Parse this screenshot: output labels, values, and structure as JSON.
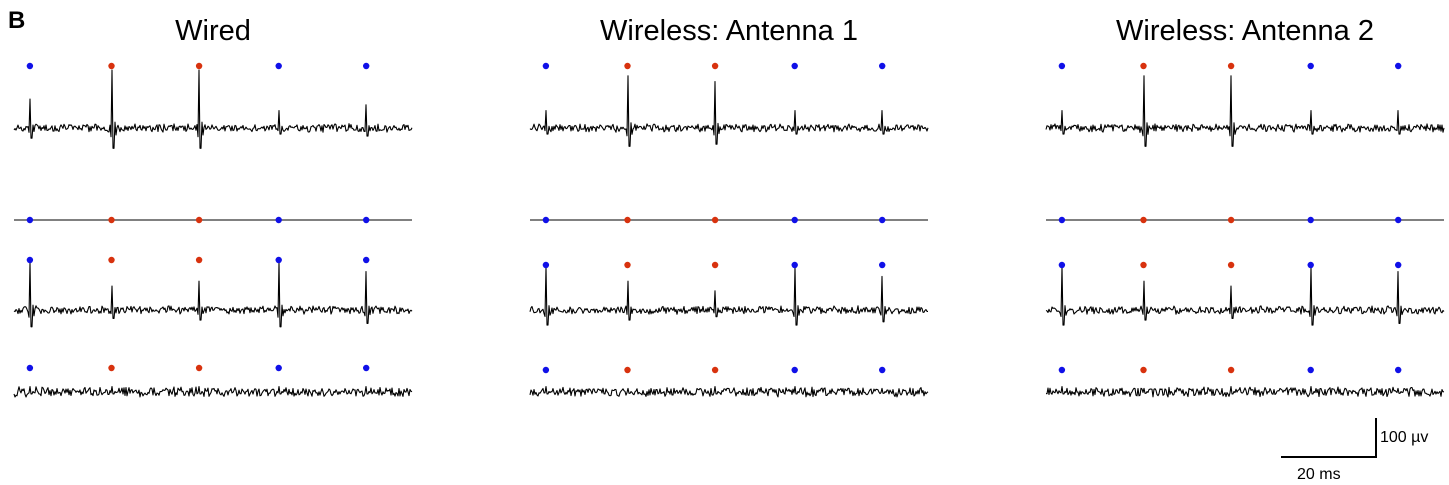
{
  "panel_label": "B",
  "scalebar": {
    "voltage_label": "100 µv",
    "time_label": "20 ms"
  },
  "colors": {
    "unit_blue": "#1010e8",
    "unit_red": "#d8320e",
    "trace": "#000000"
  },
  "chart_data": [
    {
      "type": "line",
      "title": "Wired",
      "xlabel": "",
      "ylabel": "",
      "spike_times_ms": {
        "blue": [
          8,
          133,
          177
        ],
        "red": [
          49,
          93
        ]
      },
      "traces": [
        {
          "name": "",
          "kind": "noisy",
          "peaks": [
            {
              "t": 8,
              "a": 0.5,
              "c": "blue"
            },
            {
              "t": 49,
              "a": 1.0,
              "c": "red"
            },
            {
              "t": 93,
              "a": 1.0,
              "c": "red"
            },
            {
              "t": 133,
              "a": 0.3,
              "c": "blue"
            },
            {
              "t": 177,
              "a": 0.4,
              "c": "blue"
            }
          ]
        },
        {
          "name": "",
          "kind": "flat"
        },
        {
          "name": "",
          "kind": "noisy",
          "peaks": [
            {
              "t": 8,
              "a": 1.0,
              "c": "blue"
            },
            {
              "t": 49,
              "a": 0.5,
              "c": "red"
            },
            {
              "t": 93,
              "a": 0.6,
              "c": "red"
            },
            {
              "t": 133,
              "a": 1.0,
              "c": "blue"
            },
            {
              "t": 177,
              "a": 0.8,
              "c": "blue"
            }
          ]
        },
        {
          "name": "",
          "kind": "noisy",
          "peaks": [
            {
              "t": 8,
              "a": 0.3,
              "c": "blue"
            },
            {
              "t": 49,
              "a": 0.3,
              "c": "red"
            },
            {
              "t": 93,
              "a": 0.3,
              "c": "red"
            },
            {
              "t": 133,
              "a": 0.3,
              "c": "blue"
            },
            {
              "t": 177,
              "a": 0.3,
              "c": "blue"
            }
          ]
        }
      ]
    },
    {
      "type": "line",
      "title": "Wireless: Antenna 1",
      "xlabel": "",
      "ylabel": "",
      "spike_times_ms": {
        "blue": [
          8,
          133,
          177
        ],
        "red": [
          49,
          93
        ]
      },
      "traces": [
        {
          "name": "",
          "kind": "noisy",
          "peaks": [
            {
              "t": 8,
              "a": 0.3,
              "c": "blue"
            },
            {
              "t": 49,
              "a": 0.9,
              "c": "red"
            },
            {
              "t": 93,
              "a": 0.8,
              "c": "red"
            },
            {
              "t": 133,
              "a": 0.3,
              "c": "blue"
            },
            {
              "t": 177,
              "a": 0.3,
              "c": "blue"
            }
          ]
        },
        {
          "name": "",
          "kind": "flat"
        },
        {
          "name": "",
          "kind": "noisy",
          "peaks": [
            {
              "t": 8,
              "a": 0.9,
              "c": "blue"
            },
            {
              "t": 49,
              "a": 0.6,
              "c": "red"
            },
            {
              "t": 93,
              "a": 0.4,
              "c": "red"
            },
            {
              "t": 133,
              "a": 0.9,
              "c": "blue"
            },
            {
              "t": 177,
              "a": 0.7,
              "c": "blue"
            }
          ]
        },
        {
          "name": "",
          "kind": "noisy",
          "peaks": [
            {
              "t": 8,
              "a": 0.3,
              "c": "blue"
            },
            {
              "t": 49,
              "a": 0.2,
              "c": "red"
            },
            {
              "t": 93,
              "a": 0.3,
              "c": "red"
            },
            {
              "t": 133,
              "a": 0.3,
              "c": "blue"
            },
            {
              "t": 177,
              "a": 0.2,
              "c": "blue"
            }
          ]
        }
      ]
    },
    {
      "type": "line",
      "title": "Wireless: Antenna 2",
      "xlabel": "",
      "ylabel": "",
      "spike_times_ms": {
        "blue": [
          8,
          133,
          177
        ],
        "red": [
          49,
          93
        ]
      },
      "traces": [
        {
          "name": "",
          "kind": "noisy",
          "peaks": [
            {
              "t": 8,
              "a": 0.3,
              "c": "blue"
            },
            {
              "t": 49,
              "a": 0.9,
              "c": "red"
            },
            {
              "t": 93,
              "a": 0.9,
              "c": "red"
            },
            {
              "t": 133,
              "a": 0.3,
              "c": "blue"
            },
            {
              "t": 177,
              "a": 0.3,
              "c": "blue"
            }
          ]
        },
        {
          "name": "",
          "kind": "flat"
        },
        {
          "name": "",
          "kind": "noisy",
          "peaks": [
            {
              "t": 8,
              "a": 0.9,
              "c": "blue"
            },
            {
              "t": 49,
              "a": 0.6,
              "c": "red"
            },
            {
              "t": 93,
              "a": 0.5,
              "c": "red"
            },
            {
              "t": 133,
              "a": 0.9,
              "c": "blue"
            },
            {
              "t": 177,
              "a": 0.8,
              "c": "blue"
            }
          ]
        },
        {
          "name": "",
          "kind": "noisy",
          "peaks": [
            {
              "t": 8,
              "a": 0.3,
              "c": "blue"
            },
            {
              "t": 49,
              "a": 0.2,
              "c": "red"
            },
            {
              "t": 93,
              "a": 0.3,
              "c": "red"
            },
            {
              "t": 133,
              "a": 0.3,
              "c": "blue"
            },
            {
              "t": 177,
              "a": 0.2,
              "c": "blue"
            }
          ]
        }
      ]
    }
  ]
}
